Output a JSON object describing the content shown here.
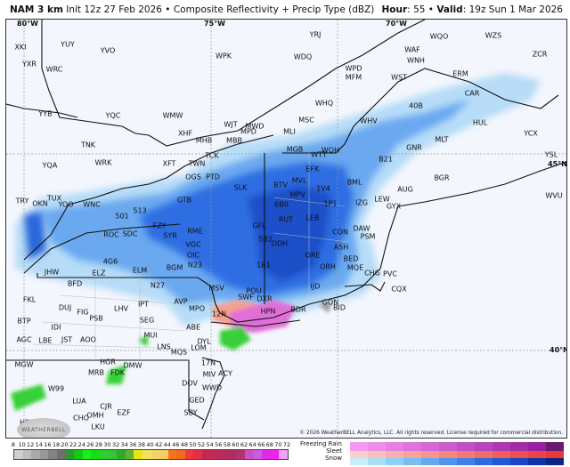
{
  "header": {
    "model": "NAM 3 km",
    "init": "Init 12z 27 Feb 2026",
    "separator": "•",
    "product": "Composite Reflectivity + Precip Type (dBZ)",
    "hour_label": "Hour",
    "hour_value": "55",
    "valid_label": "Valid",
    "valid_value": "19z Sun 1 Mar 2026"
  },
  "map": {
    "grid_labels": [
      "80°W",
      "75°W",
      "70°W",
      "45°N",
      "40°N"
    ],
    "stations": [
      "XKI",
      "YUY",
      "YVO",
      "WPK",
      "YXR",
      "WRC",
      "YYB",
      "YQC",
      "WMW",
      "TNK",
      "XHF",
      "WJT",
      "MWD",
      "MPD",
      "MHB",
      "MBB",
      "TCK",
      "TWN",
      "XFT",
      "WRK",
      "YQA",
      "TRY",
      "TUX",
      "OKN",
      "YOO",
      "WNC",
      "501",
      "513",
      "SLK",
      "PTD",
      "OGS",
      "GTB",
      "ROC",
      "SDC",
      "FZY",
      "SYR",
      "RME",
      "VGC",
      "OIC",
      "N23",
      "BGM",
      "ELM",
      "4G6",
      "JHW",
      "ELZ",
      "BFD",
      "FKL",
      "DUJ",
      "FIG",
      "PSB",
      "LHV",
      "IPT",
      "SEG",
      "N27",
      "AVP",
      "MPO",
      "MSV",
      "ABE",
      "BTP",
      "IDI",
      "AGC",
      "LBE",
      "JST",
      "AOO",
      "MUI",
      "LNS",
      "MQS",
      "LOM",
      "DYL",
      "17N",
      "MIV",
      "ACY",
      "DOV",
      "WWD",
      "GED",
      "SBY",
      "MGW",
      "HGR",
      "DMW",
      "MRB",
      "FDK",
      "LUA",
      "CJR",
      "OMH",
      "CHO",
      "LKU",
      "EZF",
      "HSP",
      "W99",
      "WHV",
      "MGB",
      "WQH",
      "WTT",
      "EFK",
      "MVL",
      "MPV",
      "1V4",
      "BML",
      "1P1",
      "LEB",
      "IZG",
      "CON",
      "DAW",
      "PSM",
      "ASH",
      "ORE",
      "ORH",
      "BED",
      "MQE",
      "CHG",
      "PVC",
      "IJD",
      "GON",
      "BID",
      "CQX",
      "B21",
      "AUG",
      "BGR",
      "LEW",
      "GYX",
      "MLT",
      "GNR",
      "40B",
      "CAR",
      "HUL",
      "ERM",
      "WZS",
      "WQO",
      "YRJ",
      "WPD",
      "MFM",
      "WST",
      "WHQ",
      "MSC",
      "YCX",
      "ZCR",
      "BTV",
      "6B0",
      "RUT",
      "GFL",
      "5B2",
      "DDH",
      "1B1",
      "POU",
      "SWF",
      "DXR",
      "12N",
      "HPN",
      "BDR",
      "WDQ",
      "WAF",
      "WNH",
      "MLI",
      "YSL",
      "WVU"
    ],
    "copyright": "© 2026 WeatherBELL Analytics, LLC. All rights reserved. License required for commercial distribution.",
    "logo": "WeatherBELL"
  },
  "legend": {
    "dbz_ticks": [
      "8",
      "10",
      "12",
      "14",
      "16",
      "18",
      "20",
      "22",
      "24",
      "26",
      "28",
      "30",
      "32",
      "34",
      "36",
      "38",
      "40",
      "42",
      "44",
      "46",
      "48",
      "50",
      "52",
      "54",
      "56",
      "58",
      "60",
      "62",
      "64",
      "66",
      "68",
      "70",
      "72"
    ],
    "dbz_colors": [
      "#cfcfcf",
      "#bdbdbd",
      "#aaaaaa",
      "#989898",
      "#838383",
      "#6f6f6f",
      "#2e9a2e",
      "#16c916",
      "#18f018",
      "#12e012",
      "#2fcf2f",
      "#36c436",
      "#2aab2a",
      "#5fb52f",
      "#e5e514",
      "#f2e25a",
      "#f2d565",
      "#f4ce60",
      "#f5751e",
      "#f26a1e",
      "#f03a3a",
      "#e52f45",
      "#c8284e",
      "#c02a55",
      "#b82a5e",
      "#b02c60",
      "#b4306e",
      "#c850c8",
      "#ce5ae0",
      "#e02ae8",
      "#f020f0",
      "#f4a0f4"
    ],
    "ptype_labels": [
      "Freezing Rain",
      "Sleet",
      "Snow"
    ],
    "freezing_rain_colors": [
      "#f49af0",
      "#ee8ee8",
      "#e680e2",
      "#de74dc",
      "#d468d4",
      "#ca5ccc",
      "#c050c4",
      "#b644bc",
      "#ac38b2",
      "#a22ca8",
      "#98209e",
      "#6a1a70"
    ],
    "sleet_colors": [
      "#fbd0cc",
      "#f9c0bb",
      "#f7b0aa",
      "#f5a39b",
      "#f4968d",
      "#f3887f",
      "#f27a72",
      "#f16c66",
      "#f05e5a",
      "#ee504e",
      "#ec4444",
      "#e83838"
    ],
    "snow_colors": [
      "#c4f0fa",
      "#a8e0f8",
      "#8cd0f6",
      "#78bdf4",
      "#64aaf0",
      "#4e96ec",
      "#3a82e6",
      "#2a6ede",
      "#1e5ad2",
      "#1646c2",
      "#0e34a8",
      "#0a2484"
    ]
  }
}
